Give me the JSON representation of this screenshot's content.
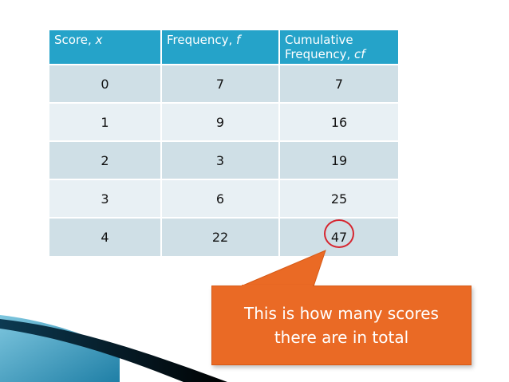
{
  "table": {
    "headers": [
      {
        "text": "Score, ",
        "var": "x"
      },
      {
        "text": "Frequency, ",
        "var": "f"
      },
      {
        "text": "Cumulative Frequency, ",
        "var": "cf"
      }
    ],
    "rows": [
      [
        "0",
        "7",
        "7"
      ],
      [
        "1",
        "9",
        "16"
      ],
      [
        "2",
        "3",
        "19"
      ],
      [
        "3",
        "6",
        "25"
      ],
      [
        "4",
        "22",
        "47"
      ]
    ]
  },
  "callout": {
    "line1": "This is how many scores",
    "line2": "there are in total"
  },
  "colors": {
    "header_bg": "#25a3c9",
    "row_dark": "#cfdfe6",
    "row_light": "#e8f0f4",
    "callout_bg": "#ea6a25",
    "highlight": "#d6252f"
  }
}
